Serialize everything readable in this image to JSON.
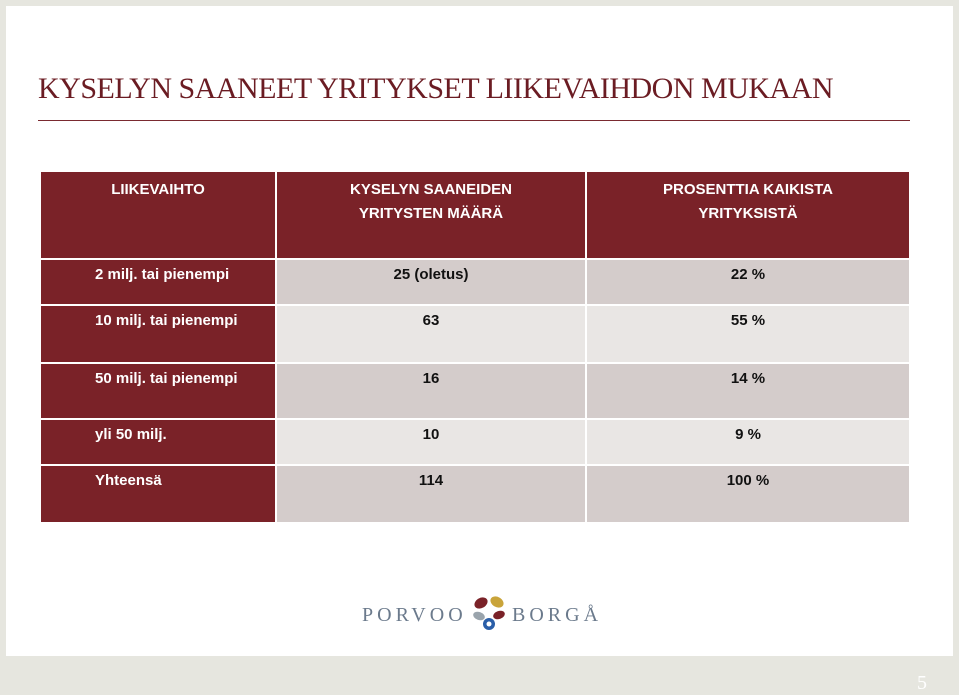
{
  "slide": {
    "title": "KYSELYN SAANEET YRITYKSET LIIKEVAIHDON MUKAAN",
    "page_number": "5"
  },
  "table": {
    "headers": [
      "LIIKEVAIHTO",
      "KYSELYN SAANEIDEN YRITYSTEN MÄÄRÄ",
      "PROSENTTIA KAIKISTA YRITYKSISTÄ"
    ],
    "rows": [
      {
        "label": "2 milj. tai pienempi",
        "count": "25 (oletus)",
        "percent": "22 %"
      },
      {
        "label": "10 milj. tai pienempi",
        "count": "63",
        "percent": "55 %"
      },
      {
        "label": "50 milj. tai pienempi",
        "count": "16",
        "percent": "14 %"
      },
      {
        "label": "yli 50 milj.",
        "count": "10",
        "percent": "9 %"
      },
      {
        "label": "Yhteensä",
        "count": "114",
        "percent": "100 %"
      }
    ]
  },
  "logo": {
    "left_word": "PORVOO",
    "right_word": "BORGÅ",
    "colors": {
      "maroon": "#7a2228",
      "gold": "#c9a43a",
      "blue": "#2a5ea8",
      "gray": "#9aa4ac"
    }
  }
}
